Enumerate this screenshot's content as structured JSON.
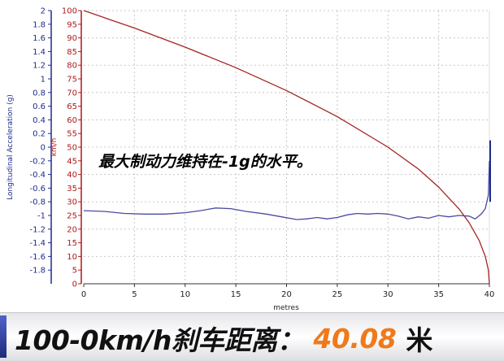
{
  "chart_data": {
    "type": "line",
    "x_axis": {
      "label": "metres",
      "range": [
        0,
        40
      ],
      "ticks": [
        0,
        5,
        10,
        15,
        20,
        25,
        30,
        35,
        40
      ]
    },
    "y_left_axis": {
      "label": "Longitudinal Acceleration (g)",
      "range": [
        -2,
        2
      ],
      "ticks": [
        "-1.8",
        "-1.6",
        "-1.4",
        "-1.2",
        "-1",
        "-0.8",
        "-0.6",
        "-0.4",
        "-0.2",
        "0",
        "0.2",
        "0.4",
        "0.6",
        "0.8",
        "1",
        "1.2",
        "1.4",
        "1.6",
        "1.8",
        "2"
      ],
      "color": "#1e2d8c"
    },
    "y_right_axis": {
      "label": "km/h",
      "range": [
        0,
        100
      ],
      "ticks": [
        "0",
        "5",
        "10",
        "15",
        "20",
        "25",
        "30",
        "35",
        "40",
        "45",
        "50",
        "55",
        "60",
        "65",
        "70",
        "75",
        "80",
        "85",
        "90",
        "95",
        "100"
      ],
      "color": "#b01818"
    },
    "grid": true,
    "series": [
      {
        "axis": "right",
        "color": "#a52424",
        "points": [
          [
            0,
            100
          ],
          [
            5,
            93.6
          ],
          [
            10,
            86.6
          ],
          [
            15,
            79.1
          ],
          [
            20,
            70.7
          ],
          [
            25,
            61.2
          ],
          [
            30,
            50
          ],
          [
            33,
            42
          ],
          [
            35,
            35.4
          ],
          [
            37,
            27.4
          ],
          [
            38,
            22.4
          ],
          [
            39,
            15.8
          ],
          [
            39.6,
            10
          ],
          [
            39.9,
            5
          ],
          [
            40,
            0
          ]
        ]
      },
      {
        "axis": "left",
        "color": "#4a4aa0",
        "points": [
          [
            0,
            -0.93
          ],
          [
            2,
            -0.94
          ],
          [
            4,
            -0.97
          ],
          [
            6,
            -0.98
          ],
          [
            8,
            -0.98
          ],
          [
            10,
            -0.96
          ],
          [
            11.5,
            -0.93
          ],
          [
            13,
            -0.89
          ],
          [
            14.5,
            -0.9
          ],
          [
            16,
            -0.94
          ],
          [
            18,
            -0.98
          ],
          [
            19.5,
            -1.02
          ],
          [
            21,
            -1.06
          ],
          [
            22,
            -1.05
          ],
          [
            23,
            -1.03
          ],
          [
            24,
            -1.05
          ],
          [
            25,
            -1.03
          ],
          [
            26,
            -0.99
          ],
          [
            27,
            -0.97
          ],
          [
            28,
            -0.98
          ],
          [
            29,
            -0.97
          ],
          [
            30,
            -0.98
          ],
          [
            31,
            -1.01
          ],
          [
            32,
            -1.05
          ],
          [
            33,
            -1.02
          ],
          [
            34,
            -1.04
          ],
          [
            35,
            -1.0
          ],
          [
            36,
            -1.02
          ],
          [
            37,
            -1.0
          ],
          [
            38,
            -1.01
          ],
          [
            38.6,
            -1.05
          ],
          [
            39.2,
            -0.98
          ],
          [
            39.6,
            -0.9
          ],
          [
            39.9,
            -0.7
          ],
          [
            40,
            -0.2
          ]
        ]
      }
    ],
    "annotation": "最大制动力维持在-1g的水平。"
  },
  "banner": {
    "prefix": "100-0km/h刹车距离：",
    "value": "40.08",
    "unit": "米"
  }
}
